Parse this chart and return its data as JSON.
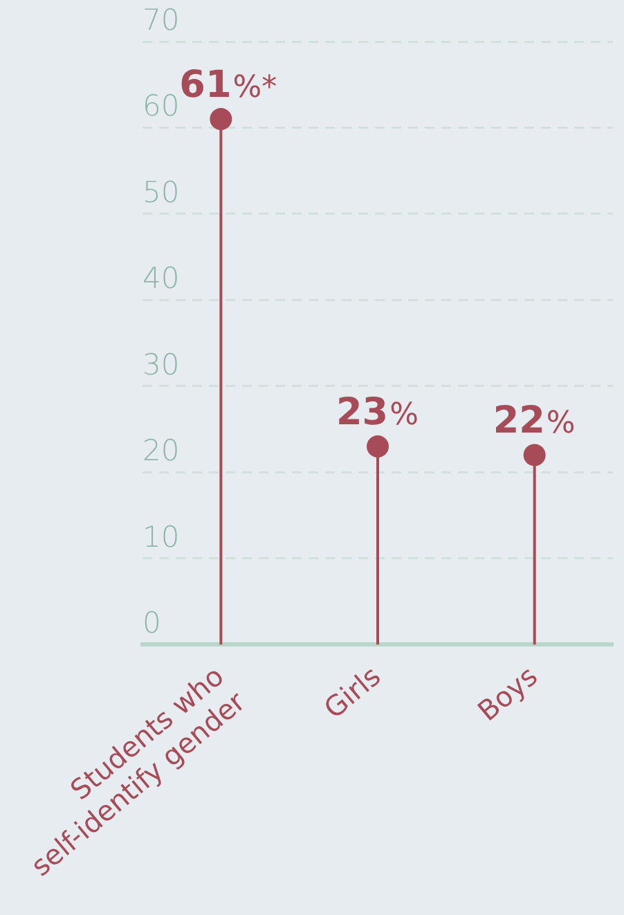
{
  "chart_data": {
    "type": "lollipop",
    "categories": [
      "Students who self-identify gender",
      "Girls",
      "Boys"
    ],
    "values": [
      61,
      23,
      22
    ],
    "color": "#a84b58",
    "value_labels": [
      "61%*",
      "23%",
      "22%"
    ],
    "ylim": [
      0,
      70
    ],
    "yticks": [
      0,
      10,
      20,
      30,
      40,
      50,
      60,
      70
    ],
    "grid": "y",
    "legend": false,
    "marker": "circle"
  }
}
